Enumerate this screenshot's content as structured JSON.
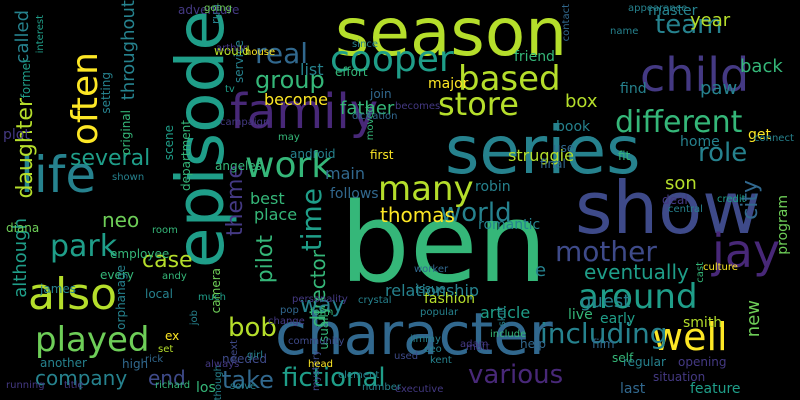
{
  "colors": {
    "background": "#000000"
  },
  "words": [
    {
      "text": "season",
      "color": "#b5de2b",
      "vertical": false
    },
    {
      "text": "episode",
      "color": "#1f9e89",
      "vertical": true
    },
    {
      "text": "ben",
      "color": "#35b779",
      "vertical": false
    },
    {
      "text": "series",
      "color": "#26828e",
      "vertical": false
    },
    {
      "text": "show",
      "color": "#3e4a89",
      "vertical": false
    },
    {
      "text": "character",
      "color": "#31688e",
      "vertical": false
    },
    {
      "text": "family",
      "color": "#482878",
      "vertical": false
    },
    {
      "text": "life",
      "color": "#26828e",
      "vertical": false
    },
    {
      "text": "often",
      "color": "#fde725",
      "vertical": true
    },
    {
      "text": "also",
      "color": "#b5de2b",
      "vertical": false
    },
    {
      "text": "child",
      "color": "#443983",
      "vertical": false
    },
    {
      "text": "jay",
      "color": "#482878",
      "vertical": false
    },
    {
      "text": "cooper",
      "color": "#1f9e89",
      "vertical": false
    },
    {
      "text": "work",
      "color": "#35b779",
      "vertical": false
    },
    {
      "text": "played",
      "color": "#6ece58",
      "vertical": false
    },
    {
      "text": "many",
      "color": "#b5de2b",
      "vertical": false
    },
    {
      "text": "well",
      "color": "#fde725",
      "vertical": false
    },
    {
      "text": "around",
      "color": "#1f9e89",
      "vertical": false
    },
    {
      "text": "different",
      "color": "#35b779",
      "vertical": false
    },
    {
      "text": "store",
      "color": "#b5de2b",
      "vertical": false
    },
    {
      "text": "based",
      "color": "#b5de2b",
      "vertical": false
    },
    {
      "text": "real",
      "color": "#31688e",
      "vertical": false
    },
    {
      "text": "time",
      "color": "#1f9e89",
      "vertical": true
    },
    {
      "text": "park",
      "color": "#1f9e89",
      "vertical": false
    },
    {
      "text": "daughter",
      "color": "#b5de2b",
      "vertical": true
    },
    {
      "text": "mother",
      "color": "#3e4a89",
      "vertical": false
    },
    {
      "text": "world",
      "color": "#26828e",
      "vertical": false
    },
    {
      "text": "role",
      "color": "#26828e",
      "vertical": false
    },
    {
      "text": "team",
      "color": "#26828e",
      "vertical": false
    },
    {
      "text": "group",
      "color": "#35b779",
      "vertical": false
    },
    {
      "text": "including",
      "color": "#26828e",
      "vertical": false
    },
    {
      "text": "fictional",
      "color": "#1f9e89",
      "vertical": false
    },
    {
      "text": "various",
      "color": "#482878",
      "vertical": false
    },
    {
      "text": "bob",
      "color": "#b5de2b",
      "vertical": false
    },
    {
      "text": "take",
      "color": "#31688e",
      "vertical": false
    },
    {
      "text": "several",
      "color": "#1f9e89",
      "vertical": false
    },
    {
      "text": "case",
      "color": "#b5de2b",
      "vertical": false
    },
    {
      "text": "company",
      "color": "#26828e",
      "vertical": false
    },
    {
      "text": "end",
      "color": "#3e4a89",
      "vertical": false
    },
    {
      "text": "city",
      "color": "#31688e",
      "vertical": true
    },
    {
      "text": "pilot",
      "color": "#35b779",
      "vertical": true
    },
    {
      "text": "director",
      "color": "#35b779",
      "vertical": true
    },
    {
      "text": "theme",
      "color": "#443983",
      "vertical": true
    },
    {
      "text": "father",
      "color": "#35b779",
      "vertical": false
    },
    {
      "text": "eventually",
      "color": "#1f9e89",
      "vertical": false
    },
    {
      "text": "guest",
      "color": "#26828e",
      "vertical": false
    },
    {
      "text": "neo",
      "color": "#6ece58",
      "vertical": false
    },
    {
      "text": "thomas",
      "color": "#fde725",
      "vertical": false
    },
    {
      "text": "way",
      "color": "#26828e",
      "vertical": false
    },
    {
      "text": "called",
      "color": "#26828e",
      "vertical": true
    },
    {
      "text": "throughout",
      "color": "#26828e",
      "vertical": true
    },
    {
      "text": "although",
      "color": "#1f9e89",
      "vertical": true
    },
    {
      "text": "year",
      "color": "#b5de2b",
      "vertical": false
    },
    {
      "text": "back",
      "color": "#35b779",
      "vertical": false
    },
    {
      "text": "paw",
      "color": "#26828e",
      "vertical": false
    },
    {
      "text": "box",
      "color": "#b5de2b",
      "vertical": false
    },
    {
      "text": "son",
      "color": "#b5de2b",
      "vertical": false
    },
    {
      "text": "new",
      "color": "#6ece58",
      "vertical": true
    },
    {
      "text": "e",
      "color": "#26828e",
      "vertical": false
    },
    {
      "text": "best",
      "color": "#35b779",
      "vertical": false
    },
    {
      "text": "place",
      "color": "#35b779",
      "vertical": false
    },
    {
      "text": "list",
      "color": "#26828e",
      "vertical": false
    },
    {
      "text": "become",
      "color": "#fde725",
      "vertical": false
    },
    {
      "text": "main",
      "color": "#31688e",
      "vertical": false
    },
    {
      "text": "struggle",
      "color": "#b5de2b",
      "vertical": false
    },
    {
      "text": "relationship",
      "color": "#26828e",
      "vertical": false
    },
    {
      "text": "article",
      "color": "#1f9e89",
      "vertical": false
    },
    {
      "text": "live",
      "color": "#35b779",
      "vertical": false
    },
    {
      "text": "early",
      "color": "#1f9e89",
      "vertical": false
    },
    {
      "text": "fashion",
      "color": "#b5de2b",
      "vertical": false
    },
    {
      "text": "robin",
      "color": "#26828e",
      "vertical": false
    },
    {
      "text": "romantic",
      "color": "#26828e",
      "vertical": false
    },
    {
      "text": "follows",
      "color": "#31688e",
      "vertical": false
    },
    {
      "text": "angeles",
      "color": "#35b779",
      "vertical": false
    },
    {
      "text": "android",
      "color": "#26828e",
      "vertical": false
    },
    {
      "text": "home",
      "color": "#26828e",
      "vertical": false
    },
    {
      "text": "get",
      "color": "#fde725",
      "vertical": false
    },
    {
      "text": "find",
      "color": "#26828e",
      "vertical": false
    },
    {
      "text": "master",
      "color": "#26828e",
      "vertical": false
    },
    {
      "text": "friend",
      "color": "#35b779",
      "vertical": false
    },
    {
      "text": "major",
      "color": "#fde725",
      "vertical": false
    },
    {
      "text": "book",
      "color": "#26828e",
      "vertical": false
    },
    {
      "text": "use",
      "color": "#31688e",
      "vertical": false
    },
    {
      "text": "final",
      "color": "#31688e",
      "vertical": false
    },
    {
      "text": "first",
      "color": "#fde725",
      "vertical": false
    },
    {
      "text": "fit",
      "color": "#35b779",
      "vertical": false
    },
    {
      "text": "deal",
      "color": "#443983",
      "vertical": false
    },
    {
      "text": "program",
      "color": "#6ece58",
      "vertical": true
    },
    {
      "text": "smith",
      "color": "#b5de2b",
      "vertical": false
    },
    {
      "text": "film",
      "color": "#31688e",
      "vertical": false
    },
    {
      "text": "help",
      "color": "#31688e",
      "vertical": false
    },
    {
      "text": "feature",
      "color": "#1f9e89",
      "vertical": false
    },
    {
      "text": "situation",
      "color": "#443983",
      "vertical": false
    },
    {
      "text": "last",
      "color": "#31688e",
      "vertical": false
    },
    {
      "text": "regular",
      "color": "#26828e",
      "vertical": false
    },
    {
      "text": "opening",
      "color": "#443983",
      "vertical": false
    },
    {
      "text": "los",
      "color": "#35b779",
      "vertical": false
    },
    {
      "text": "needed",
      "color": "#3e4a89",
      "vertical": false
    },
    {
      "text": "high",
      "color": "#31688e",
      "vertical": false
    },
    {
      "text": "rick",
      "color": "#31688e",
      "vertical": false
    },
    {
      "text": "another",
      "color": "#26828e",
      "vertical": false
    },
    {
      "text": "running",
      "color": "#443983",
      "vertical": false
    },
    {
      "text": "title",
      "color": "#443983",
      "vertical": false
    },
    {
      "text": "james",
      "color": "#26828e",
      "vertical": false
    },
    {
      "text": "every",
      "color": "#35b779",
      "vertical": false
    },
    {
      "text": "employee",
      "color": "#35b779",
      "vertical": false
    },
    {
      "text": "diana",
      "color": "#6ece58",
      "vertical": false
    },
    {
      "text": "plot",
      "color": "#443983",
      "vertical": false
    },
    {
      "text": "former",
      "color": "#1f9e89",
      "vertical": true
    },
    {
      "text": "interest",
      "color": "#1f9e89",
      "vertical": true
    },
    {
      "text": "setting",
      "color": "#26828e",
      "vertical": true
    },
    {
      "text": "original",
      "color": "#35b779",
      "vertical": true
    },
    {
      "text": "scene",
      "color": "#1f9e89",
      "vertical": true
    },
    {
      "text": "department",
      "color": "#35b779",
      "vertical": true
    },
    {
      "text": "orphanage",
      "color": "#26828e",
      "vertical": true
    },
    {
      "text": "camera",
      "color": "#6ece58",
      "vertical": true
    },
    {
      "text": "local",
      "color": "#26828e",
      "vertical": false
    },
    {
      "text": "ex",
      "color": "#fde725",
      "vertical": false
    },
    {
      "text": "set",
      "color": "#b5de2b",
      "vertical": false
    },
    {
      "text": "shown",
      "color": "#26828e",
      "vertical": false
    },
    {
      "text": "job",
      "color": "#26828e",
      "vertical": true
    },
    {
      "text": "much",
      "color": "#1f9e89",
      "vertical": false
    },
    {
      "text": "personality",
      "color": "#443983",
      "vertical": false
    },
    {
      "text": "usually",
      "color": "#35b779",
      "vertical": true
    },
    {
      "text": "form",
      "color": "#35b779",
      "vertical": false
    },
    {
      "text": "skill",
      "color": "#26828e",
      "vertical": true
    },
    {
      "text": "matt",
      "color": "#443983",
      "vertical": false
    },
    {
      "text": "jimmy",
      "color": "#26828e",
      "vertical": false
    },
    {
      "text": "cast",
      "color": "#35b779",
      "vertical": true
    },
    {
      "text": "culture",
      "color": "#fde725",
      "vertical": false
    },
    {
      "text": "issue",
      "color": "#26828e",
      "vertical": false
    },
    {
      "text": "worker",
      "color": "#31688e",
      "vertical": false
    },
    {
      "text": "moved",
      "color": "#35b779",
      "vertical": true
    },
    {
      "text": "join",
      "color": "#31688e",
      "vertical": false
    },
    {
      "text": "effort",
      "color": "#35b779",
      "vertical": false
    },
    {
      "text": "service",
      "color": "#26828e",
      "vertical": true
    },
    {
      "text": "house",
      "color": "#fde725",
      "vertical": false
    },
    {
      "text": "would",
      "color": "#b5de2b",
      "vertical": false
    },
    {
      "text": "run",
      "color": "#26828e",
      "vertical": true
    },
    {
      "text": "adventure",
      "color": "#443983",
      "vertical": false
    },
    {
      "text": "may",
      "color": "#35b779",
      "vertical": false
    },
    {
      "text": "going",
      "color": "#6ece58",
      "vertical": false
    },
    {
      "text": "richard",
      "color": "#35b779",
      "vertical": false
    },
    {
      "text": "change",
      "color": "#443983",
      "vertical": false
    },
    {
      "text": "girl",
      "color": "#26828e",
      "vertical": false
    },
    {
      "text": "executive",
      "color": "#443983",
      "vertical": false
    },
    {
      "text": "community",
      "color": "#3e4a89",
      "vertical": false
    },
    {
      "text": "andy",
      "color": "#35b779",
      "vertical": false
    },
    {
      "text": "room",
      "color": "#35b779",
      "vertical": false
    },
    {
      "text": "central",
      "color": "#26828e",
      "vertical": false
    },
    {
      "text": "credit",
      "color": "#1f9e89",
      "vertical": false
    },
    {
      "text": "name",
      "color": "#26828e",
      "vertical": false
    },
    {
      "text": "self",
      "color": "#35b779",
      "vertical": false
    },
    {
      "text": "include",
      "color": "#35b779",
      "vertical": false
    },
    {
      "text": "crystal",
      "color": "#26828e",
      "vertical": false
    },
    {
      "text": "mystery",
      "color": "#3e4a89",
      "vertical": true
    },
    {
      "text": "next",
      "color": "#3e4a89",
      "vertical": true
    },
    {
      "text": "tv",
      "color": "#1f9e89",
      "vertical": false
    },
    {
      "text": "dr",
      "color": "#31688e",
      "vertical": false
    },
    {
      "text": "ceo",
      "color": "#26828e",
      "vertical": false
    },
    {
      "text": "used",
      "color": "#3e4a89",
      "vertical": false
    },
    {
      "text": "element",
      "color": "#26828e",
      "vertical": false
    },
    {
      "text": "pop",
      "color": "#31688e",
      "vertical": false
    },
    {
      "text": "though",
      "color": "#26828e",
      "vertical": true
    },
    {
      "text": "always",
      "color": "#443983",
      "vertical": false
    },
    {
      "text": "popular",
      "color": "#26828e",
      "vertical": false
    },
    {
      "text": "citation",
      "color": "#31688e",
      "vertical": false
    },
    {
      "text": "number",
      "color": "#26828e",
      "vertical": false
    },
    {
      "text": "appearance",
      "color": "#26828e",
      "vertical": false
    },
    {
      "text": "since",
      "color": "#26828e",
      "vertical": false
    },
    {
      "text": "arthur",
      "color": "#443983",
      "vertical": false
    },
    {
      "text": "campaign",
      "color": "#443983",
      "vertical": false
    },
    {
      "text": "connect",
      "color": "#26828e",
      "vertical": false
    },
    {
      "text": "head",
      "color": "#fde725",
      "vertical": false
    },
    {
      "text": "adam",
      "color": "#443983",
      "vertical": false
    },
    {
      "text": "kent",
      "color": "#26828e",
      "vertical": false
    },
    {
      "text": "solve",
      "color": "#26828e",
      "vertical": false
    },
    {
      "text": "becomes",
      "color": "#443983",
      "vertical": false
    },
    {
      "text": "contact",
      "color": "#31688e",
      "vertical": true
    },
    {
      "text": "old",
      "color": "#26828e",
      "vertical": false
    },
    {
      "text": "unable",
      "color": "#1f9e89",
      "vertical": true
    },
    {
      "text": "stand",
      "color": "#31688e",
      "vertical": false
    }
  ]
}
